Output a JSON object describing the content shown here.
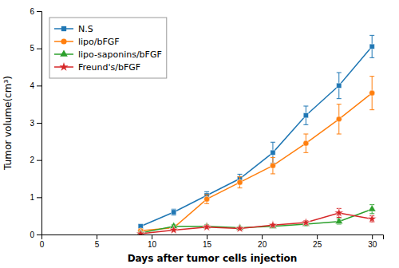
{
  "chart_data": {
    "type": "line",
    "x": [
      9,
      12,
      15,
      18,
      21,
      24,
      27,
      30
    ],
    "series": [
      {
        "name": "N.S",
        "marker": "square",
        "values": [
          0.22,
          0.6,
          1.05,
          1.5,
          2.2,
          3.2,
          4.0,
          5.05
        ],
        "errors": [
          0.05,
          0.08,
          0.1,
          0.12,
          0.28,
          0.25,
          0.35,
          0.3
        ]
      },
      {
        "name": "lipo/bFGF",
        "marker": "circle",
        "values": [
          0.1,
          0.18,
          0.95,
          1.4,
          1.85,
          2.45,
          3.1,
          3.8
        ],
        "errors": [
          0.04,
          0.05,
          0.12,
          0.15,
          0.22,
          0.25,
          0.4,
          0.45
        ]
      },
      {
        "name": "lipo-saponins/bFGF",
        "marker": "triangle",
        "values": [
          0.04,
          0.22,
          0.22,
          0.18,
          0.22,
          0.28,
          0.35,
          0.68
        ],
        "errors": [
          0.02,
          0.04,
          0.04,
          0.03,
          0.04,
          0.04,
          0.07,
          0.12
        ]
      },
      {
        "name": "Freund's/bFGF",
        "marker": "star",
        "values": [
          0.02,
          0.12,
          0.2,
          0.16,
          0.25,
          0.32,
          0.58,
          0.42
        ],
        "errors": [
          0.01,
          0.03,
          0.04,
          0.03,
          0.04,
          0.05,
          0.12,
          0.08
        ]
      }
    ],
    "xlabel": "Days after tumor cells injection",
    "ylabel": "Tumor volume(cm³)",
    "xlim": [
      0,
      31
    ],
    "ylim": [
      0,
      6
    ],
    "xticks": [
      0,
      5,
      10,
      15,
      20,
      25,
      30
    ],
    "yticks": [
      0,
      1,
      2,
      3,
      4,
      5,
      6
    ],
    "grid": false,
    "legend": "upper left"
  }
}
